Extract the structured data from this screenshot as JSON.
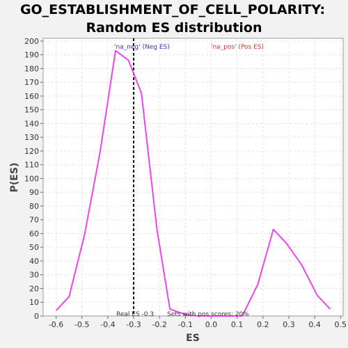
{
  "chart_data": {
    "type": "line",
    "title": "GO_ESTABLISHMENT_OF_CELL_POLARITY:",
    "subtitle": "Random ES distribution",
    "xlabel": "ES",
    "ylabel": "P(ES)",
    "xlim": [
      -0.65,
      0.51
    ],
    "ylim": [
      0,
      202
    ],
    "xticks": [
      -0.6,
      -0.5,
      -0.4,
      -0.3,
      -0.2,
      -0.1,
      0.0,
      0.1,
      0.2,
      0.3,
      0.4,
      0.5
    ],
    "yticks": [
      0,
      10,
      20,
      30,
      40,
      50,
      60,
      70,
      80,
      90,
      100,
      110,
      120,
      130,
      140,
      150,
      160,
      170,
      180,
      190,
      200
    ],
    "grid": true,
    "series": [
      {
        "color": "#ee44ee",
        "x": [
          -0.6,
          -0.55,
          -0.49,
          -0.43,
          -0.37,
          -0.32,
          -0.27,
          -0.21,
          -0.16,
          -0.1,
          -0.05,
          0.01,
          0.07,
          0.12,
          0.18,
          0.24,
          0.29,
          0.35,
          0.41,
          0.46
        ],
        "y": [
          4,
          14,
          59,
          119,
          193,
          186,
          162,
          63,
          5,
          1,
          0,
          0,
          0,
          0,
          23,
          63,
          53,
          37,
          15,
          5
        ]
      }
    ],
    "real_es": -0.3,
    "annotations": {
      "neg_label": "'na_neg' (Neg ES)",
      "neg_color": "#3333cc",
      "pos_label": "'na_pos' (Pos ES)",
      "pos_color": "#dd3333",
      "real_es_label": "Real ES -0.3",
      "pos_fraction_label": "Sets with pos scores: 20%"
    }
  }
}
